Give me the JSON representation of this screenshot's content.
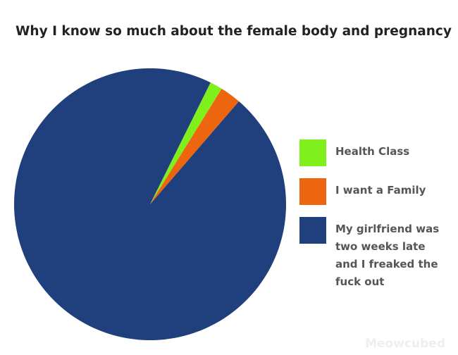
{
  "chart_data": {
    "type": "pie",
    "title": "Why I know so much about the female body and pregnancy",
    "categories": [
      "Health Class",
      "I want a Family",
      "My girlfriend was two weeks late and I freaked the fuck out"
    ],
    "values": [
      1.5,
      2.5,
      96
    ],
    "colors": [
      "#7ff01b",
      "#ee650f",
      "#1f3f7d"
    ],
    "legend": "right",
    "watermark": "Meowcubed"
  }
}
